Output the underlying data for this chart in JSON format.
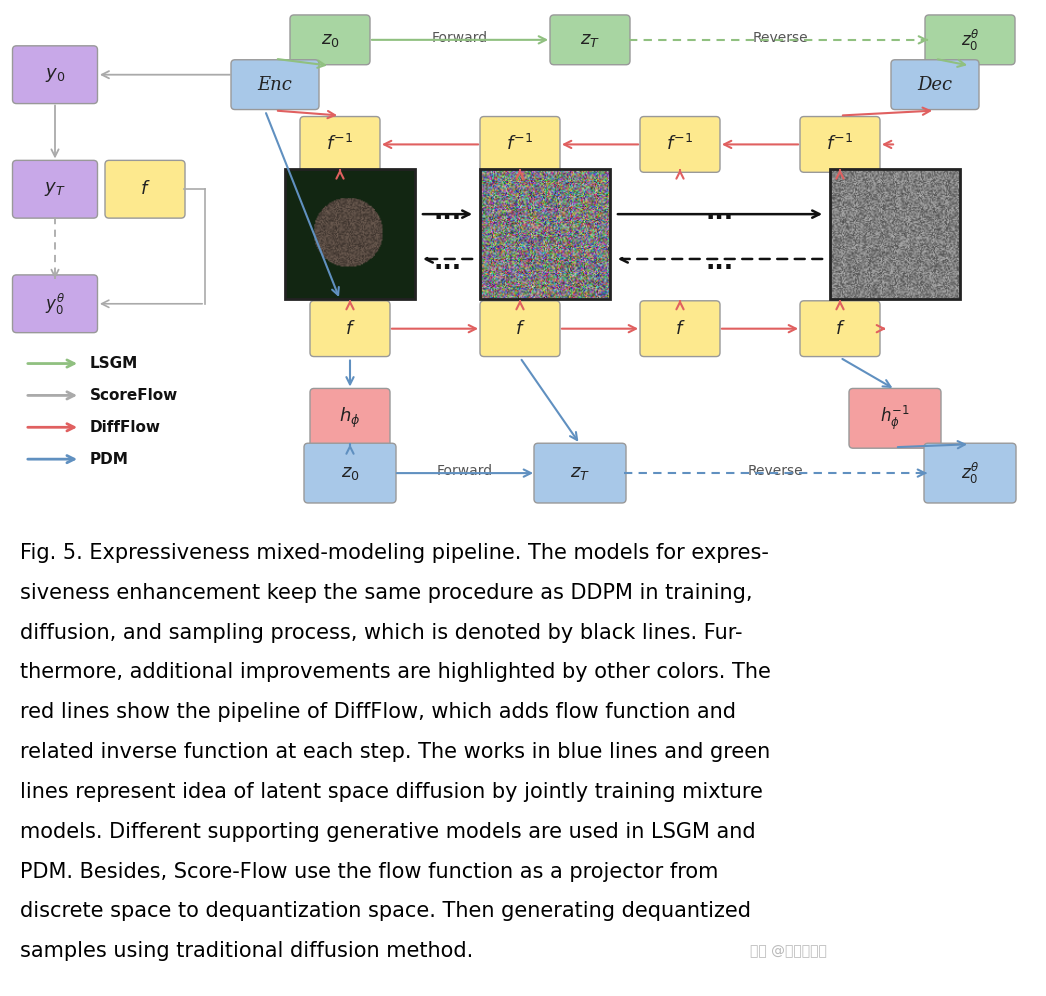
{
  "bg_color": "#ffffff",
  "text_color": "#000000",
  "colors": {
    "green_box": "#a8d5a2",
    "yellow_box": "#fde98e",
    "purple_box": "#c8a8e8",
    "blue_box": "#a8c8e8",
    "pink_box": "#f4a0a0",
    "green_arrow": "#90c080",
    "gray_arrow": "#aaaaaa",
    "red_arrow": "#e06060",
    "blue_arrow": "#6090c0",
    "black_arrow": "#111111"
  },
  "caption": "Fig. 5. Expressiveness mixed-modeling pipeline. The models for expres-\nsiveness enhancement keep the same procedure as DDPM in training,\ndiffusion, and sampling process, which is denoted by black lines. Fur-\nthermore, additional improvements are highlighted by other colors. The\nred lines show the pipeline of DiffFlow, which adds flow function and\nrelated inverse function at each step. The works in blue lines and green\nlines represent idea of latent space diffusion by jointly training mixture\nmodels. Different supporting generative models are used in LSGM and\nPDM. Besides, Score-Flow use the flow function as a projector from\ndiscrete space to dequantization space. Then generating dequantized\nsamples using traditional diffusion method.",
  "watermark": "知乎 @很高兴健康"
}
